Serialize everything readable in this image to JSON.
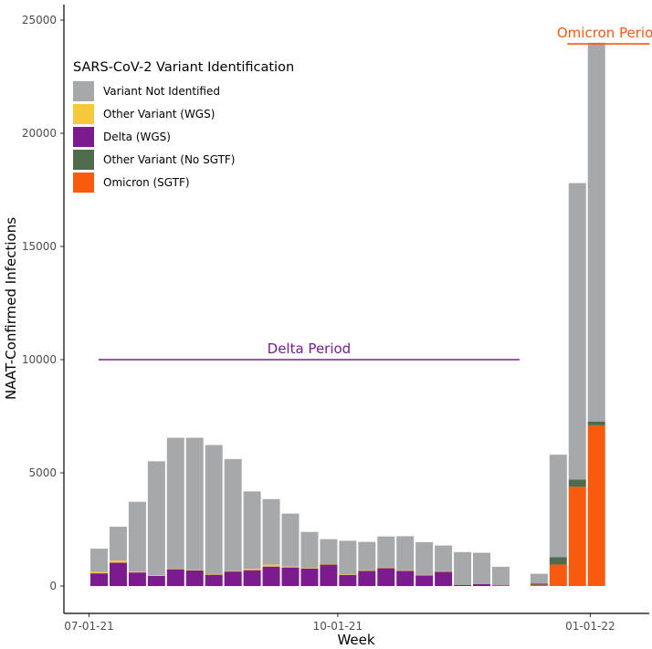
{
  "chart_data": {
    "type": "bar",
    "stacked": true,
    "xlabel": "Week",
    "ylabel": "NAAT-Confirmed Infections",
    "ylim": [
      0,
      25500
    ],
    "yticks": [
      0,
      5000,
      10000,
      15000,
      20000,
      25000
    ],
    "xticks": [
      {
        "label": "07-01-21",
        "position": 0
      },
      {
        "label": "10-01-21",
        "position": 13
      },
      {
        "label": "01-01-22",
        "position": 26.2
      }
    ],
    "grid": false,
    "legend": {
      "title": "SARS-CoV-2 Variant Identification",
      "placement": "top-left",
      "entries": [
        {
          "key": "not_identified",
          "label": "Variant Not Identified",
          "color": "#a6a9ac"
        },
        {
          "key": "other_wgs",
          "label": "Other Variant (WGS)",
          "color": "#f5c93a"
        },
        {
          "key": "delta_wgs",
          "label": "Delta (WGS)",
          "color": "#7a1b8e"
        },
        {
          "key": "other_nosgtf",
          "label": "Other Variant (No SGTF)",
          "color": "#4e6b4b"
        },
        {
          "key": "omicron_sgtf",
          "label": "Omicron (SGTF)",
          "color": "#fa5a0f"
        }
      ]
    },
    "stack_order": [
      "omicron_sgtf",
      "other_nosgtf",
      "delta_wgs",
      "other_wgs",
      "not_identified"
    ],
    "bars": [
      {
        "x": 0,
        "omicron_sgtf": 0,
        "other_nosgtf": 0,
        "delta_wgs": 560,
        "other_wgs": 60,
        "not_identified": 1030
      },
      {
        "x": 1,
        "omicron_sgtf": 0,
        "other_nosgtf": 0,
        "delta_wgs": 1030,
        "other_wgs": 90,
        "not_identified": 1500
      },
      {
        "x": 2,
        "omicron_sgtf": 0,
        "other_nosgtf": 0,
        "delta_wgs": 600,
        "other_wgs": 40,
        "not_identified": 3080
      },
      {
        "x": 3,
        "omicron_sgtf": 0,
        "other_nosgtf": 0,
        "delta_wgs": 450,
        "other_wgs": 20,
        "not_identified": 5040
      },
      {
        "x": 4,
        "omicron_sgtf": 0,
        "other_nosgtf": 0,
        "delta_wgs": 750,
        "other_wgs": 10,
        "not_identified": 5790
      },
      {
        "x": 5,
        "omicron_sgtf": 0,
        "other_nosgtf": 0,
        "delta_wgs": 700,
        "other_wgs": 10,
        "not_identified": 5840
      },
      {
        "x": 6,
        "omicron_sgtf": 0,
        "other_nosgtf": 0,
        "delta_wgs": 500,
        "other_wgs": 30,
        "not_identified": 5700
      },
      {
        "x": 7,
        "omicron_sgtf": 0,
        "other_nosgtf": 0,
        "delta_wgs": 650,
        "other_wgs": 10,
        "not_identified": 4950
      },
      {
        "x": 8,
        "omicron_sgtf": 0,
        "other_nosgtf": 0,
        "delta_wgs": 700,
        "other_wgs": 60,
        "not_identified": 3420
      },
      {
        "x": 9,
        "omicron_sgtf": 0,
        "other_nosgtf": 0,
        "delta_wgs": 860,
        "other_wgs": 80,
        "not_identified": 2900
      },
      {
        "x": 10,
        "omicron_sgtf": 0,
        "other_nosgtf": 0,
        "delta_wgs": 820,
        "other_wgs": 40,
        "not_identified": 2340
      },
      {
        "x": 11,
        "omicron_sgtf": 0,
        "other_nosgtf": 0,
        "delta_wgs": 780,
        "other_wgs": 10,
        "not_identified": 1600
      },
      {
        "x": 12,
        "omicron_sgtf": 0,
        "other_nosgtf": 0,
        "delta_wgs": 960,
        "other_wgs": 10,
        "not_identified": 1100
      },
      {
        "x": 13,
        "omicron_sgtf": 0,
        "other_nosgtf": 0,
        "delta_wgs": 500,
        "other_wgs": 10,
        "not_identified": 1490
      },
      {
        "x": 14,
        "omicron_sgtf": 0,
        "other_nosgtf": 0,
        "delta_wgs": 680,
        "other_wgs": 10,
        "not_identified": 1260
      },
      {
        "x": 15,
        "omicron_sgtf": 0,
        "other_nosgtf": 0,
        "delta_wgs": 800,
        "other_wgs": 10,
        "not_identified": 1380
      },
      {
        "x": 16,
        "omicron_sgtf": 0,
        "other_nosgtf": 0,
        "delta_wgs": 680,
        "other_wgs": 10,
        "not_identified": 1510
      },
      {
        "x": 17,
        "omicron_sgtf": 0,
        "other_nosgtf": 0,
        "delta_wgs": 480,
        "other_wgs": 10,
        "not_identified": 1450
      },
      {
        "x": 18,
        "omicron_sgtf": 0,
        "other_nosgtf": 0,
        "delta_wgs": 640,
        "other_wgs": 10,
        "not_identified": 1140
      },
      {
        "x": 19,
        "omicron_sgtf": 0,
        "other_nosgtf": 0,
        "delta_wgs": 40,
        "other_wgs": 0,
        "not_identified": 1460
      },
      {
        "x": 20,
        "omicron_sgtf": 0,
        "other_nosgtf": 0,
        "delta_wgs": 80,
        "other_wgs": 0,
        "not_identified": 1390
      },
      {
        "x": 21,
        "omicron_sgtf": 0,
        "other_nosgtf": 0,
        "delta_wgs": 30,
        "other_wgs": 0,
        "not_identified": 820
      },
      {
        "x": 23,
        "omicron_sgtf": 60,
        "other_nosgtf": 20,
        "delta_wgs": 20,
        "other_wgs": 0,
        "not_identified": 440
      },
      {
        "x": 24,
        "omicron_sgtf": 950,
        "other_nosgtf": 320,
        "delta_wgs": 0,
        "other_wgs": 0,
        "not_identified": 4530
      },
      {
        "x": 25,
        "omicron_sgtf": 4380,
        "other_nosgtf": 320,
        "delta_wgs": 0,
        "other_wgs": 0,
        "not_identified": 13100
      },
      {
        "x": 26,
        "omicron_sgtf": 7100,
        "other_nosgtf": 170,
        "delta_wgs": 0,
        "other_wgs": 0,
        "not_identified": 16730
      }
    ],
    "annotations": [
      {
        "text": "Delta Period",
        "color": "#7a1b8e",
        "y": 10000,
        "x_start": 0.5,
        "x_end": 22.5,
        "label_x": 11.5
      },
      {
        "text": "Omicron Period",
        "color": "#f35a12",
        "y": 23950,
        "x_start": 25,
        "x_end": 29.3,
        "label_x": 27.2
      }
    ]
  }
}
